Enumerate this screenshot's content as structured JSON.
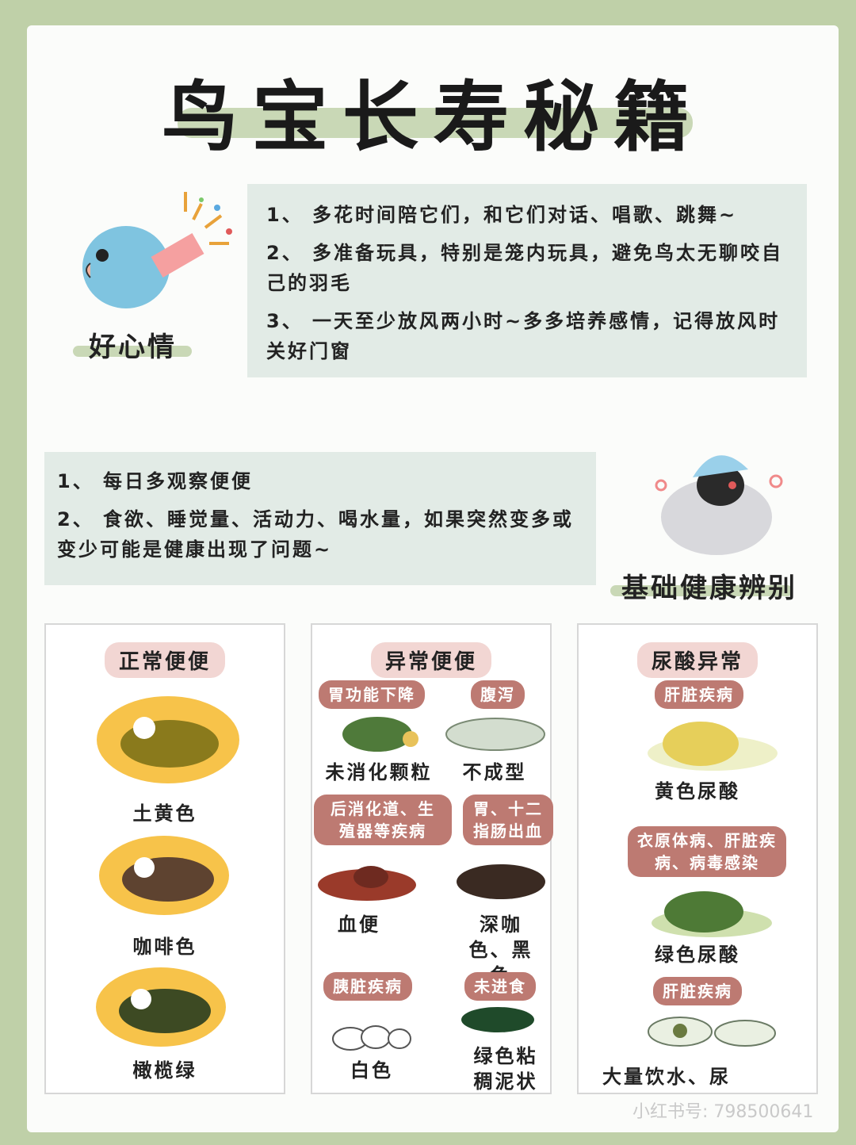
{
  "title": "鸟宝长寿秘籍",
  "section1": {
    "label": "好心情",
    "items": [
      "1、 多花时间陪它们，和它们对话、唱歌、跳舞~",
      "2、 多准备玩具，特别是笼内玩具，避免鸟太无聊咬自己的羽毛",
      "3、 一天至少放风两小时~多多培养感情，记得放风时关好门窗"
    ]
  },
  "section2": {
    "label": "基础健康辨别",
    "items": [
      "1、 每日多观察便便",
      "2、 食欲、睡觉量、活动力、喝水量，如果突然变多或变少可能是健康出现了问题~"
    ]
  },
  "panels": {
    "normal": {
      "title": "正常便便",
      "captions": [
        "土黄色",
        "咖啡色",
        "橄榄绿"
      ],
      "colors": [
        "#8a7a1c",
        "#5e4330",
        "#3d4a23"
      ]
    },
    "abnormal": {
      "title": "异常便便",
      "tags": [
        "胃功能下降",
        "腹泻",
        "后消化道、生殖器等疾病",
        "胃、十二指肠出血",
        "胰脏疾病",
        "未进食"
      ],
      "captions": [
        "未消化颗粒",
        "不成型",
        "血便",
        "深咖色、黑色",
        "白色",
        "绿色粘稠泥状"
      ]
    },
    "urate": {
      "title": "尿酸异常",
      "tags": [
        "肝脏疾病",
        "衣原体病、肝脏疾病、病毒感染",
        "肝脏疾病"
      ],
      "captions": [
        "黄色尿酸",
        "绿色尿酸",
        "大量饮水、尿"
      ]
    }
  },
  "watermark": "小红书号: 798500641"
}
